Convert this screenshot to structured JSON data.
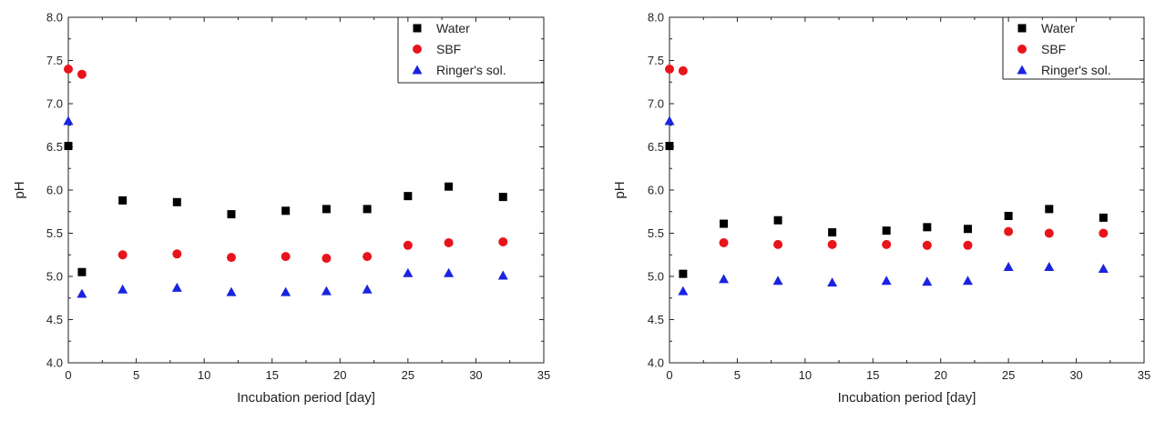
{
  "colors": {
    "Water": "#000000",
    "SBF": "#e8141b",
    "Ringer's sol.": "#1a24e0"
  },
  "chart_data": [
    {
      "type": "scatter",
      "xlabel": "Incubation period [day]",
      "ylabel": "pH",
      "xlim": [
        0,
        35
      ],
      "ylim": [
        4.0,
        8.0
      ],
      "xticks": [
        0,
        5,
        10,
        15,
        20,
        25,
        30,
        35
      ],
      "yticks": [
        4.0,
        4.5,
        5.0,
        5.5,
        6.0,
        6.5,
        7.0,
        7.5,
        8.0
      ],
      "legend_position": "top-right",
      "series": [
        {
          "name": "Water",
          "marker": "square",
          "x": [
            0,
            1,
            4,
            8,
            12,
            16,
            19,
            22,
            25,
            28,
            32
          ],
          "y": [
            6.51,
            5.05,
            5.88,
            5.86,
            5.72,
            5.76,
            5.78,
            5.78,
            5.93,
            6.04,
            5.92
          ]
        },
        {
          "name": "SBF",
          "marker": "circle",
          "x": [
            0,
            1,
            4,
            8,
            12,
            16,
            19,
            22,
            25,
            28,
            32
          ],
          "y": [
            7.4,
            7.34,
            5.25,
            5.26,
            5.22,
            5.23,
            5.21,
            5.23,
            5.36,
            5.39,
            5.4
          ]
        },
        {
          "name": "Ringer's sol.",
          "marker": "triangle",
          "x": [
            0,
            1,
            4,
            8,
            12,
            16,
            19,
            22,
            25,
            28,
            32
          ],
          "y": [
            6.8,
            4.8,
            4.85,
            4.87,
            4.82,
            4.82,
            4.83,
            4.85,
            5.04,
            5.04,
            5.01
          ]
        }
      ]
    },
    {
      "type": "scatter",
      "xlabel": "Incubation period [day]",
      "ylabel": "pH",
      "xlim": [
        0,
        35
      ],
      "ylim": [
        4.0,
        8.0
      ],
      "xticks": [
        0,
        5,
        10,
        15,
        20,
        25,
        30,
        35
      ],
      "yticks": [
        4.0,
        4.5,
        5.0,
        5.5,
        6.0,
        6.5,
        7.0,
        7.5,
        8.0
      ],
      "legend_position": "top-right",
      "series": [
        {
          "name": "Water",
          "marker": "square",
          "x": [
            0,
            1,
            4,
            8,
            12,
            16,
            19,
            22,
            25,
            28,
            32
          ],
          "y": [
            6.51,
            5.03,
            5.61,
            5.65,
            5.51,
            5.53,
            5.57,
            5.55,
            5.7,
            5.78,
            5.68
          ]
        },
        {
          "name": "SBF",
          "marker": "circle",
          "x": [
            0,
            1,
            4,
            8,
            12,
            16,
            19,
            22,
            25,
            28,
            32
          ],
          "y": [
            7.4,
            7.38,
            5.39,
            5.37,
            5.37,
            5.37,
            5.36,
            5.36,
            5.52,
            5.5,
            5.5
          ]
        },
        {
          "name": "Ringer's sol.",
          "marker": "triangle",
          "x": [
            0,
            1,
            4,
            8,
            12,
            16,
            19,
            22,
            25,
            28,
            32
          ],
          "y": [
            6.8,
            4.83,
            4.97,
            4.95,
            4.93,
            4.95,
            4.94,
            4.95,
            5.11,
            5.11,
            5.09
          ]
        }
      ]
    }
  ]
}
